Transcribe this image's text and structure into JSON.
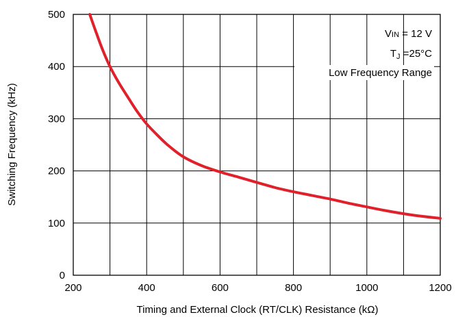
{
  "chart_data": {
    "type": "line",
    "xlabel": "Timing and External Clock  (RT/CLK) Resistance  (kΩ)",
    "ylabel": "Switching Frequency (kHz)",
    "xlim": [
      200,
      1200
    ],
    "ylim": [
      0,
      500
    ],
    "x_ticks": [
      200,
      400,
      600,
      800,
      1000,
      1200
    ],
    "y_ticks": [
      0,
      100,
      200,
      300,
      400,
      500
    ],
    "x_tick_labels": [
      "200",
      "400",
      "600",
      "800",
      "1000",
      "1200"
    ],
    "y_tick_labels": [
      "0",
      "100",
      "200",
      "300",
      "400",
      "500"
    ],
    "x_grid_step": 100,
    "y_grid_step": 100,
    "grid": true,
    "annotations": {
      "vin_main": "V",
      "vin_sub": "IN",
      "vin_value": " = 12 V",
      "tj_main": "T",
      "tj_sub": "J",
      "tj_value": " =25°C",
      "range": "Low Frequency Range"
    },
    "series": [
      {
        "color": "#e0202a",
        "x": [
          245,
          260,
          280,
          300,
          325,
          350,
          375,
          400,
          430,
          460,
          500,
          550,
          600,
          650,
          700,
          750,
          800,
          850,
          900,
          950,
          1000,
          1050,
          1100,
          1150,
          1200
        ],
        "y": [
          500,
          470,
          432,
          400,
          368,
          340,
          313,
          290,
          268,
          248,
          227,
          210,
          198,
          188,
          178,
          168,
          160,
          153,
          146,
          138,
          131,
          124,
          118,
          113,
          109
        ]
      }
    ]
  }
}
